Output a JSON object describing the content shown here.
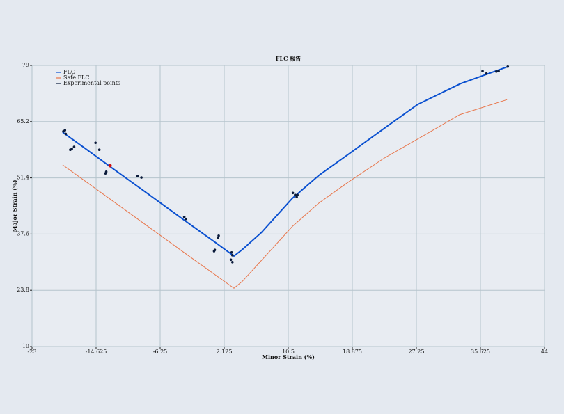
{
  "chart_data": {
    "type": "line",
    "title": "FLC 报告",
    "x_label": "Minor Strain (%)",
    "y_label": "Major Strain (%)",
    "xlim": [
      -23,
      44
    ],
    "xticks": [
      -23,
      -14.625,
      -6.25,
      2.125,
      10.5,
      18.875,
      27.25,
      35.625,
      44
    ],
    "ylim": [
      10,
      79
    ],
    "yticks": [
      10,
      23.8,
      37.6,
      51.4,
      65.2,
      79
    ],
    "grid": true,
    "legend": "upper-left",
    "series": [
      {
        "name": "FLC",
        "type": "line",
        "color": "#0a50d0",
        "x": [
          -19,
          -15,
          -12.6,
          -8,
          -3.1,
          1,
          3.4,
          4.5,
          7,
          11.05,
          14.5,
          18.3,
          23,
          27.4,
          33,
          39.2
        ],
        "values": [
          62.6,
          57.2,
          53.9,
          47.7,
          41.0,
          35.5,
          32.2,
          33.8,
          38.0,
          46.4,
          52.0,
          57.1,
          63.5,
          69.4,
          74.5,
          78.7
        ]
      },
      {
        "name": "Safe FLC",
        "type": "line",
        "color": "#e8754a",
        "x": [
          -19,
          -10,
          -3,
          3.4,
          4.5,
          8,
          11.05,
          14.5,
          18.3,
          23,
          27.4,
          32.9,
          39.1
        ],
        "values": [
          54.6,
          42.4,
          32.9,
          24.3,
          26.0,
          33.2,
          39.5,
          45.2,
          50.3,
          56.2,
          60.9,
          66.9,
          70.6
        ]
      },
      {
        "name": "Experimental points",
        "type": "scatter",
        "color": "#0a1a3a",
        "x": [
          -18.9,
          -18.7,
          -18.6,
          -18.0,
          -17.8,
          -17.5,
          -14.7,
          -14.2,
          -13.4,
          -13.3,
          -12.8,
          -9.2,
          -8.7,
          -3.1,
          -2.9,
          0.8,
          0.9,
          1.3,
          1.4,
          3.1,
          3.2,
          3.0,
          3.2,
          11.1,
          11.4,
          11.6,
          11.7,
          35.9,
          36.4,
          37.7,
          38.0,
          39.2
        ],
        "values": [
          62.8,
          63.1,
          62.2,
          58.3,
          58.5,
          59.0,
          60.0,
          58.3,
          52.5,
          52.9,
          54.4,
          51.8,
          51.5,
          41.8,
          41.3,
          33.4,
          33.7,
          36.6,
          37.2,
          33.1,
          32.4,
          31.3,
          30.7,
          47.7,
          47.2,
          46.7,
          47.2,
          77.6,
          77.0,
          77.5,
          77.6,
          78.7
        ],
        "marker_colors": [
          "#0a1a3a",
          "#0a1a3a",
          "#0a1a3a",
          "#0a1a3a",
          "#0a1a3a",
          "#0a1a3a",
          "#0a1a3a",
          "#0a1a3a",
          "#0a1a3a",
          "#0a1a3a",
          "#d01010",
          "#0a1a3a",
          "#0a1a3a",
          "#0a1a3a",
          "#0a1a3a",
          "#0a1a3a",
          "#0a1a3a",
          "#0a1a3a",
          "#0a1a3a",
          "#0a1a3a",
          "#0a1a3a",
          "#0a1a3a",
          "#0a1a3a",
          "#0a1a3a",
          "#0a1a3a",
          "#0a1a3a",
          "#0a1a3a",
          "#0a1a3a",
          "#0a1a3a",
          "#0a1a3a",
          "#0a1a3a",
          "#0a1a3a"
        ]
      }
    ]
  }
}
